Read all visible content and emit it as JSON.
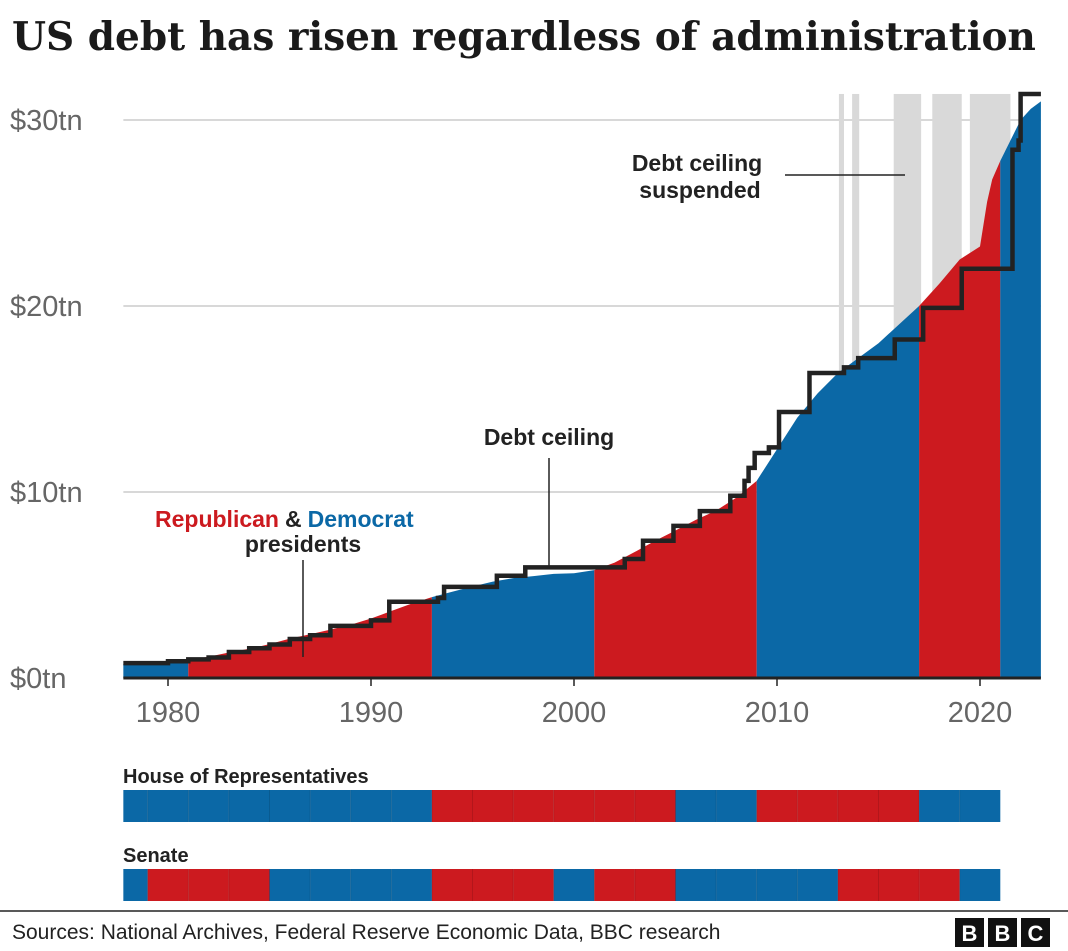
{
  "title": "US debt has risen regardless of administration",
  "source": "Sources: National Archives, Federal Reserve Economic Data, BBC research",
  "logo": "BBC",
  "colors": {
    "republican": "#cc1a1f",
    "democrat": "#0b68a6",
    "ceiling": "#222222",
    "suspended": "#d9d9d9",
    "grid": "#cccccc"
  },
  "chart_data": {
    "type": "area",
    "title": "US debt has risen regardless of administration",
    "xlim": [
      1977.8,
      2023
    ],
    "ylim": [
      0,
      31.5
    ],
    "unit": "$tn",
    "grid": true,
    "x_ticks": [
      1980,
      1990,
      2000,
      2010,
      2020
    ],
    "x_tick_labels": [
      "1980",
      "1990",
      "2000",
      "2010",
      "2020"
    ],
    "y_ticks": [
      0,
      10,
      20,
      30
    ],
    "y_tick_labels": [
      "$0tn",
      "$10tn",
      "$20tn",
      "$30tn"
    ],
    "debt": [
      [
        1977.8,
        0.75
      ],
      [
        1980,
        0.86
      ],
      [
        1981,
        0.97
      ],
      [
        1982,
        1.14
      ],
      [
        1983,
        1.37
      ],
      [
        1984,
        1.57
      ],
      [
        1985,
        1.82
      ],
      [
        1986,
        2.12
      ],
      [
        1987,
        2.35
      ],
      [
        1988,
        2.6
      ],
      [
        1989,
        2.86
      ],
      [
        1990,
        3.2
      ],
      [
        1991,
        3.6
      ],
      [
        1992,
        4.0
      ],
      [
        1993,
        4.35
      ],
      [
        1994,
        4.64
      ],
      [
        1995,
        4.92
      ],
      [
        1996,
        5.18
      ],
      [
        1997,
        5.37
      ],
      [
        1998,
        5.48
      ],
      [
        1999,
        5.6
      ],
      [
        2000,
        5.63
      ],
      [
        2001,
        5.8
      ],
      [
        2002,
        6.2
      ],
      [
        2003,
        6.78
      ],
      [
        2004,
        7.38
      ],
      [
        2005,
        7.93
      ],
      [
        2006,
        8.5
      ],
      [
        2007,
        9.0
      ],
      [
        2008,
        9.7
      ],
      [
        2009,
        10.6
      ],
      [
        2010,
        12.3
      ],
      [
        2011,
        14.0
      ],
      [
        2012,
        15.3
      ],
      [
        2013,
        16.4
      ],
      [
        2014,
        17.2
      ],
      [
        2015,
        18.0
      ],
      [
        2016,
        19.0
      ],
      [
        2017,
        20.0
      ],
      [
        2018,
        21.2
      ],
      [
        2019,
        22.5
      ],
      [
        2020,
        23.2
      ],
      [
        2020.35,
        25.6
      ],
      [
        2020.6,
        26.8
      ],
      [
        2021,
        27.8
      ],
      [
        2022,
        30.0
      ],
      [
        2022.5,
        30.6
      ],
      [
        2023,
        31.0
      ]
    ],
    "debt_ceiling": [
      [
        1977.8,
        0.8
      ],
      [
        1980,
        0.9
      ],
      [
        1981,
        1.0
      ],
      [
        1982,
        1.1
      ],
      [
        1983,
        1.4
      ],
      [
        1984,
        1.6
      ],
      [
        1985,
        1.8
      ],
      [
        1986,
        2.1
      ],
      [
        1987,
        2.3
      ],
      [
        1988,
        2.8
      ],
      [
        1990,
        3.1
      ],
      [
        1990.9,
        4.1
      ],
      [
        1993.3,
        4.3
      ],
      [
        1993.6,
        4.9
      ],
      [
        1996.2,
        5.5
      ],
      [
        1997.6,
        5.95
      ],
      [
        2002.5,
        6.4
      ],
      [
        2003.4,
        7.38
      ],
      [
        2004.9,
        8.18
      ],
      [
        2006.2,
        8.97
      ],
      [
        2007.7,
        9.8
      ],
      [
        2008.4,
        10.6
      ],
      [
        2008.6,
        11.3
      ],
      [
        2008.9,
        12.1
      ],
      [
        2009.6,
        12.4
      ],
      [
        2010.1,
        14.3
      ],
      [
        2011.6,
        16.4
      ],
      [
        2013.3,
        16.7
      ],
      [
        2014.0,
        17.2
      ],
      [
        2015.8,
        18.2
      ],
      [
        2017.2,
        19.9
      ],
      [
        2019.1,
        22.0
      ],
      [
        2021.6,
        28.4
      ],
      [
        2021.9,
        28.9
      ],
      [
        2022,
        31.4
      ],
      [
        2023,
        31.4
      ]
    ],
    "suspended_periods": [
      [
        2013.05,
        2013.3
      ],
      [
        2013.7,
        2014.05
      ],
      [
        2015.75,
        2017.1
      ],
      [
        2017.65,
        2019.1
      ],
      [
        2019.5,
        2021.5
      ]
    ],
    "presidents": [
      {
        "from": 1977.8,
        "to": 1981,
        "party": "D"
      },
      {
        "from": 1981,
        "to": 1993,
        "party": "R"
      },
      {
        "from": 1993,
        "to": 2001,
        "party": "D"
      },
      {
        "from": 2001,
        "to": 2009,
        "party": "R"
      },
      {
        "from": 2009,
        "to": 2017,
        "party": "D"
      },
      {
        "from": 2017,
        "to": 2021,
        "party": "R"
      },
      {
        "from": 2021,
        "to": 2023,
        "party": "D"
      }
    ],
    "annotations": {
      "republican": "Republican",
      "amp": "&",
      "democrat": "Democrat",
      "presidents": "presidents",
      "debt_ceiling": "Debt ceiling",
      "suspended_1": "Debt ceiling",
      "suspended_2": "suspended"
    },
    "house": {
      "label": "House of Representatives",
      "parties": [
        "D",
        "D",
        "D",
        "D",
        "D",
        "D",
        "D",
        "D",
        "R",
        "R",
        "R",
        "R",
        "R",
        "R",
        "D",
        "D",
        "R",
        "R",
        "R",
        "R",
        "D",
        "D"
      ]
    },
    "senate": {
      "label": "Senate",
      "parties": [
        "D",
        "D",
        "R",
        "R",
        "R",
        "D",
        "D",
        "D",
        "D",
        "R",
        "R",
        "R",
        "D",
        "R",
        "R",
        "D",
        "D",
        "D",
        "D",
        "R",
        "R",
        "R",
        "D"
      ]
    }
  }
}
